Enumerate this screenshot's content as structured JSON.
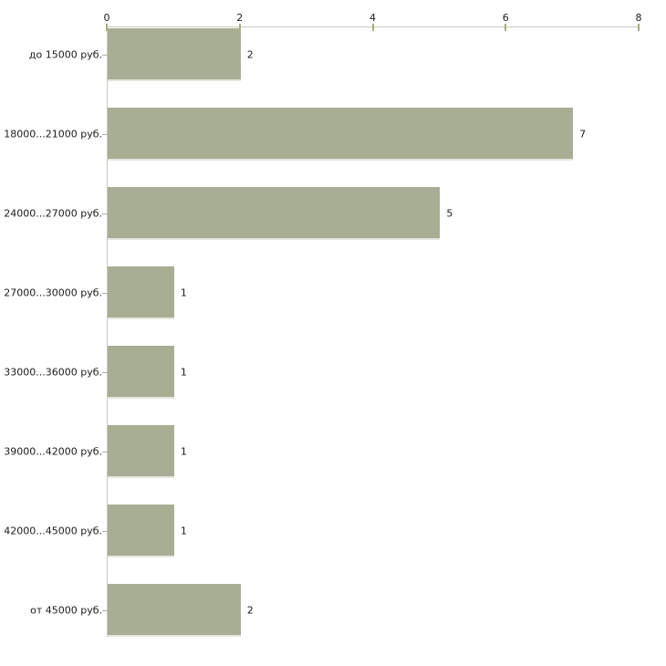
{
  "chart_data": {
    "type": "bar",
    "orientation": "horizontal",
    "title": "",
    "xlabel": "",
    "ylabel": "",
    "grid": false,
    "legend": false,
    "x_axis": {
      "position": "top",
      "range": [
        0,
        8
      ],
      "ticks": [
        "0",
        "2",
        "4",
        "6",
        "8"
      ],
      "tick_values": [
        0,
        2,
        4,
        6,
        8
      ]
    },
    "categories": [
      "до 15000 руб.",
      "18000...21000 руб.",
      "24000...27000 руб.",
      "27000...30000 руб.",
      "33000...36000 руб.",
      "39000...42000 руб.",
      "42000...45000 руб.",
      "от 45000 руб."
    ],
    "values": [
      2,
      7,
      5,
      1,
      1,
      1,
      1,
      2
    ],
    "value_labels": [
      "2",
      "7",
      "5",
      "1",
      "1",
      "1",
      "1",
      "2"
    ],
    "colors": {
      "bar_fill": "#a8ae93",
      "bar_bottom_edge": "#e6e6dd",
      "axis_line": "#c9c9c2",
      "tick_mark": "#a9ab7e",
      "text": "#1c1c1c",
      "background": "#ffffff"
    }
  }
}
